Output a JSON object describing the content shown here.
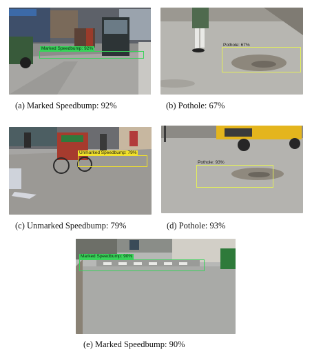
{
  "figure": {
    "panels": [
      {
        "id": "a",
        "scene": "street with bus and rickshaws",
        "detection": {
          "label": "Marked Speedbump: 92%",
          "class": "Marked Speedbump",
          "confidence": 92,
          "color": "#39d25a"
        },
        "caption": "(a)  Marked Speedbump: 92%"
      },
      {
        "id": "b",
        "scene": "road surface with pedestrian legs",
        "detection": {
          "label": "Pothole: 67%",
          "class": "Pothole",
          "confidence": 67,
          "color": "#e4f05a"
        },
        "caption": "(b) Pothole: 67%"
      },
      {
        "id": "c",
        "scene": "street with cycle rickshaw",
        "detection": {
          "label": "Unmarked Speedbump: 79%",
          "class": "Unmarked Speedbump",
          "confidence": 79,
          "color": "#f2e22a"
        },
        "caption": "(c) Unmarked Speedbump: 79%"
      },
      {
        "id": "d",
        "scene": "road surface with yellow auto-rickshaw",
        "detection": {
          "label": "Pothole: 93%",
          "class": "Pothole",
          "confidence": 93,
          "color": "#e4f05a"
        },
        "caption": "(d) Pothole: 93%"
      },
      {
        "id": "e",
        "scene": "road with painted speedbump",
        "detection": {
          "label": "Marked Speedbump: 90%",
          "class": "Marked Speedbump",
          "confidence": 90,
          "color": "#39d25a"
        },
        "caption": "(e) Marked Speedbump: 90%"
      }
    ]
  }
}
